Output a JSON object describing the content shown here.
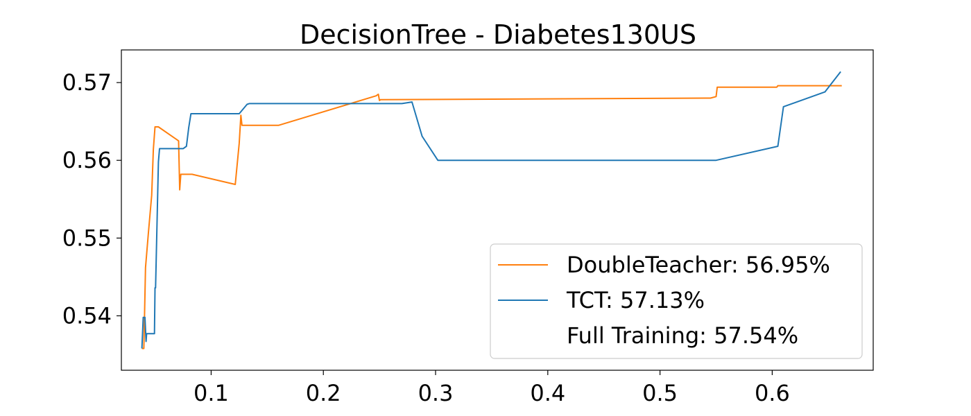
{
  "chart_data": {
    "type": "line",
    "title": "DecisionTree - Diabetes130US",
    "xlabel": "",
    "ylabel": "",
    "xlim": [
      0.02,
      0.69
    ],
    "ylim": [
      0.533,
      0.5742
    ],
    "xticks": [
      0.1,
      0.2,
      0.3,
      0.4,
      0.5,
      0.6
    ],
    "xtick_labels": [
      "0.1",
      "0.2",
      "0.3",
      "0.4",
      "0.5",
      "0.6"
    ],
    "yticks": [
      0.54,
      0.55,
      0.56,
      0.57
    ],
    "ytick_labels": [
      "0.54",
      "0.55",
      "0.56",
      "0.57"
    ],
    "grid": false,
    "legend_position": "lower-right",
    "series": [
      {
        "name": "DoubleTeacher: 56.95%",
        "color": "#ff7f0e",
        "points": [
          [
            0.0383,
            0.5358
          ],
          [
            0.04,
            0.5358
          ],
          [
            0.0415,
            0.5462
          ],
          [
            0.044,
            0.5505
          ],
          [
            0.047,
            0.5555
          ],
          [
            0.0485,
            0.5614
          ],
          [
            0.05,
            0.5643
          ],
          [
            0.053,
            0.5643
          ],
          [
            0.071,
            0.5625
          ],
          [
            0.072,
            0.5562
          ],
          [
            0.073,
            0.5582
          ],
          [
            0.083,
            0.5582
          ],
          [
            0.1215,
            0.5569
          ],
          [
            0.125,
            0.5622
          ],
          [
            0.1265,
            0.5658
          ],
          [
            0.1275,
            0.5645
          ],
          [
            0.16,
            0.5645
          ],
          [
            0.247,
            0.5683
          ],
          [
            0.249,
            0.5685
          ],
          [
            0.25,
            0.5677
          ],
          [
            0.251,
            0.5678
          ],
          [
            0.545,
            0.568
          ],
          [
            0.55,
            0.5682
          ],
          [
            0.551,
            0.5694
          ],
          [
            0.604,
            0.5694
          ],
          [
            0.605,
            0.5696
          ],
          [
            0.662,
            0.5696
          ]
        ]
      },
      {
        "name": "TCT: 57.13%",
        "color": "#1f77b4",
        "points": [
          [
            0.0383,
            0.5358
          ],
          [
            0.0395,
            0.5398
          ],
          [
            0.041,
            0.5398
          ],
          [
            0.042,
            0.5367
          ],
          [
            0.0425,
            0.5377
          ],
          [
            0.0495,
            0.5377
          ],
          [
            0.05,
            0.5436
          ],
          [
            0.0505,
            0.5436
          ],
          [
            0.053,
            0.5598
          ],
          [
            0.054,
            0.5615
          ],
          [
            0.075,
            0.5615
          ],
          [
            0.078,
            0.5618
          ],
          [
            0.08,
            0.5642
          ],
          [
            0.082,
            0.566
          ],
          [
            0.125,
            0.566
          ],
          [
            0.132,
            0.5672
          ],
          [
            0.134,
            0.5673
          ],
          [
            0.27,
            0.5673
          ],
          [
            0.279,
            0.5675
          ],
          [
            0.288,
            0.5631
          ],
          [
            0.302,
            0.56
          ],
          [
            0.55,
            0.56
          ],
          [
            0.605,
            0.5618
          ],
          [
            0.61,
            0.5669
          ],
          [
            0.647,
            0.5688
          ],
          [
            0.661,
            0.5714
          ]
        ]
      },
      {
        "name": "Full Training: 57.54%",
        "color": "#2ca02c",
        "points": []
      }
    ]
  }
}
